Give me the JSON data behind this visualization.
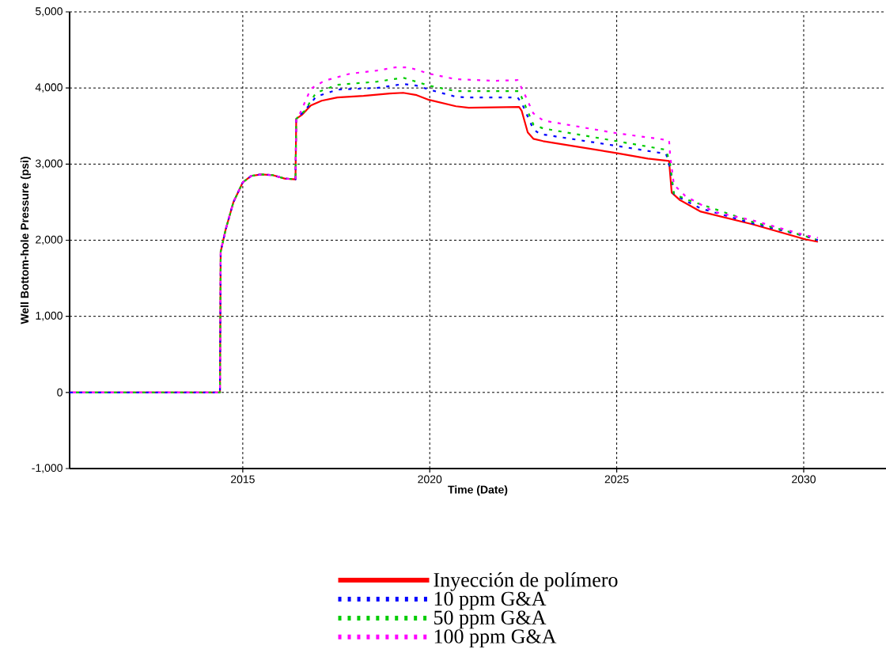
{
  "chart_data": {
    "type": "line",
    "xlabel": "Time (Date)",
    "ylabel": "Well Bottom-hole Pressure (psi)",
    "xlim": [
      2010.37,
      2032.2
    ],
    "ylim": [
      -1000,
      5000
    ],
    "xticks": [
      2015,
      2020,
      2025,
      2030
    ],
    "yticks": [
      {
        "value": -1000,
        "label": "-1,000"
      },
      0,
      {
        "value": 1000,
        "label": "1,000"
      },
      {
        "value": 2000,
        "label": "2,000"
      },
      {
        "value": 3000,
        "label": "3,000"
      },
      {
        "value": 4000,
        "label": "4,000"
      },
      {
        "value": 5000,
        "label": "5,000"
      }
    ],
    "grid": true,
    "legend": "bottom",
    "marker": "none",
    "series": [
      {
        "name": "Inyección de polímero",
        "color": "#ff0000",
        "line_style": "solid",
        "x": [
          2010.37,
          2014.39,
          2014.41,
          2014.54,
          2014.75,
          2015.0,
          2015.23,
          2015.49,
          2015.8,
          2016.12,
          2016.41,
          2016.43,
          2016.58,
          2016.82,
          2017.11,
          2017.53,
          2018.23,
          2018.93,
          2019.29,
          2019.65,
          2019.98,
          2020.7,
          2021.04,
          2022.39,
          2022.46,
          2022.62,
          2022.77,
          2023.03,
          2024.99,
          2025.83,
          2026.4,
          2026.47,
          2026.68,
          2027.25,
          2028.64,
          2030.06,
          2030.38
        ],
        "values": [
          0,
          0,
          1850,
          2135,
          2500,
          2760,
          2845,
          2865,
          2855,
          2810,
          2800,
          3594,
          3646,
          3770,
          3833,
          3875,
          3896,
          3927,
          3937,
          3906,
          3844,
          3760,
          3740,
          3750,
          3698,
          3417,
          3333,
          3302,
          3146,
          3073,
          3042,
          2625,
          2531,
          2375,
          2208,
          2010,
          1979
        ]
      },
      {
        "name": "10 ppm G&A",
        "color": "#0000ff",
        "line_style": "dashed",
        "x": [
          2010.37,
          2014.39,
          2014.41,
          2014.54,
          2014.75,
          2015.0,
          2015.23,
          2015.49,
          2015.8,
          2016.12,
          2016.41,
          2016.43,
          2016.65,
          2016.96,
          2017.53,
          2018.59,
          2019.29,
          2019.65,
          2019.98,
          2020.7,
          2021.04,
          2022.35,
          2022.46,
          2022.77,
          2022.94,
          2024.99,
          2026.32,
          2026.43,
          2026.53,
          2026.83,
          2027.25,
          2028.64,
          2030.06,
          2030.38
        ],
        "values": [
          0,
          0,
          1850,
          2135,
          2500,
          2760,
          2845,
          2865,
          2855,
          2810,
          2800,
          3594,
          3698,
          3885,
          3979,
          4000,
          4052,
          4031,
          3979,
          3885,
          3875,
          3875,
          3802,
          3458,
          3396,
          3240,
          3135,
          2937,
          2604,
          2521,
          2417,
          2219,
          2052,
          2000
        ]
      },
      {
        "name": "50 ppm  G&A",
        "color": "#00cc00",
        "line_style": "dashed",
        "x": [
          2010.37,
          2014.39,
          2014.41,
          2014.54,
          2014.75,
          2015.0,
          2015.23,
          2015.49,
          2015.8,
          2016.12,
          2016.41,
          2016.43,
          2016.65,
          2016.96,
          2017.53,
          2018.59,
          2019.29,
          2019.98,
          2020.7,
          2022.39,
          2022.46,
          2022.77,
          2023.03,
          2024.99,
          2026.32,
          2026.43,
          2026.53,
          2026.95,
          2028.64,
          2030.06,
          2030.33
        ],
        "values": [
          0,
          0,
          1850,
          2135,
          2500,
          2760,
          2845,
          2865,
          2855,
          2810,
          2800,
          3594,
          3698,
          3937,
          4042,
          4083,
          4135,
          4031,
          3958,
          3958,
          3875,
          3521,
          3469,
          3302,
          3188,
          3000,
          2604,
          2521,
          2240,
          2052,
          2010
        ]
      },
      {
        "name": "100 ppm  G&A",
        "color": "#ff00ff",
        "line_style": "dashed",
        "x": [
          2010.37,
          2014.39,
          2014.41,
          2014.54,
          2014.75,
          2015.0,
          2015.23,
          2015.49,
          2015.8,
          2016.12,
          2016.41,
          2016.43,
          2016.54,
          2016.82,
          2017.18,
          2017.87,
          2018.59,
          2019.08,
          2019.44,
          2019.98,
          2020.7,
          2021.76,
          2022.35,
          2022.52,
          2022.77,
          2023.03,
          2024.99,
          2026.4,
          2026.43,
          2026.53,
          2026.83,
          2027.59,
          2028.64,
          2030.06,
          2030.38
        ],
        "values": [
          0,
          0,
          1850,
          2135,
          2500,
          2760,
          2845,
          2865,
          2855,
          2810,
          2800,
          3594,
          3677,
          3990,
          4094,
          4188,
          4229,
          4271,
          4271,
          4188,
          4115,
          4094,
          4104,
          3937,
          3667,
          3573,
          3406,
          3313,
          3104,
          2729,
          2583,
          2375,
          2260,
          2063,
          2031
        ]
      }
    ]
  }
}
